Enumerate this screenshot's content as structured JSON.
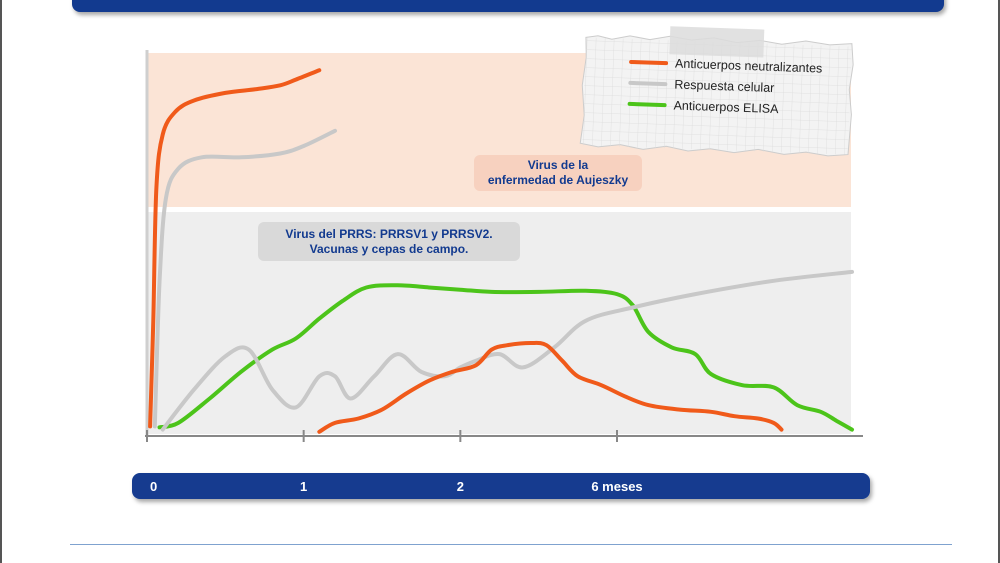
{
  "chart_data": {
    "type": "line",
    "title": "",
    "xlabel": "",
    "ylabel": "",
    "x_ticks": [
      {
        "x": 0,
        "label": "0"
      },
      {
        "x": 1,
        "label": "1"
      },
      {
        "x": 2,
        "label": "2"
      },
      {
        "x": 3,
        "label": "6 meses"
      }
    ],
    "xlim": [
      0,
      4.5
    ],
    "ylim": [
      0,
      1
    ],
    "grid": false,
    "legend": {
      "position": "top-right",
      "entries": [
        {
          "series": "neutralizing",
          "label": "Anticuerpos neutralizantes"
        },
        {
          "series": "cellular",
          "label": "Respuesta celular"
        },
        {
          "series": "elisa",
          "label": "Anticuerpos ELISA"
        }
      ]
    },
    "panels": [
      {
        "id": "aujeszky",
        "label": "Virus de la\nenfermedad de Aujeszky",
        "background": "#fbe4d6",
        "series": [
          {
            "id": "neutralizing",
            "color": "#f05a1a",
            "points": [
              [
                0.02,
                0.02
              ],
              [
                0.04,
                0.3
              ],
              [
                0.06,
                0.65
              ],
              [
                0.1,
                0.79
              ],
              [
                0.18,
                0.85
              ],
              [
                0.3,
                0.88
              ],
              [
                0.5,
                0.9
              ],
              [
                0.7,
                0.91
              ],
              [
                0.85,
                0.92
              ],
              [
                0.95,
                0.935
              ],
              [
                1.1,
                0.96
              ]
            ]
          },
          {
            "id": "cellular",
            "color": "#c8c8c8",
            "points": [
              [
                0.05,
                0.02
              ],
              [
                0.08,
                0.4
              ],
              [
                0.12,
                0.62
              ],
              [
                0.2,
                0.7
              ],
              [
                0.35,
                0.73
              ],
              [
                0.6,
                0.73
              ],
              [
                0.85,
                0.74
              ],
              [
                1.0,
                0.76
              ],
              [
                1.2,
                0.8
              ]
            ]
          }
        ]
      },
      {
        "id": "prrs",
        "label": "Virus del PRRS: PRRSV1 y PRRSV2.\nVacunas y cepas de campo.",
        "background": "#eeeeee",
        "series": [
          {
            "id": "elisa",
            "color": "#4cc41a",
            "points": [
              [
                0.08,
                0.03
              ],
              [
                0.2,
                0.05
              ],
              [
                0.4,
                0.16
              ],
              [
                0.6,
                0.28
              ],
              [
                0.8,
                0.38
              ],
              [
                0.95,
                0.43
              ],
              [
                1.1,
                0.52
              ],
              [
                1.25,
                0.6
              ],
              [
                1.4,
                0.66
              ],
              [
                1.6,
                0.67
              ],
              [
                1.8,
                0.66
              ],
              [
                2.0,
                0.65
              ],
              [
                2.2,
                0.64
              ],
              [
                2.5,
                0.64
              ],
              [
                2.8,
                0.645
              ],
              [
                3.0,
                0.63
              ],
              [
                3.1,
                0.58
              ],
              [
                3.2,
                0.46
              ],
              [
                3.35,
                0.39
              ],
              [
                3.5,
                0.36
              ],
              [
                3.6,
                0.27
              ],
              [
                3.8,
                0.22
              ],
              [
                4.0,
                0.21
              ],
              [
                4.15,
                0.13
              ],
              [
                4.3,
                0.1
              ],
              [
                4.4,
                0.06
              ],
              [
                4.5,
                0.02
              ]
            ]
          },
          {
            "id": "cellular",
            "color": "#c8c8c8",
            "points": [
              [
                0.1,
                0.02
              ],
              [
                0.3,
                0.2
              ],
              [
                0.5,
                0.35
              ],
              [
                0.65,
                0.38
              ],
              [
                0.8,
                0.2
              ],
              [
                0.95,
                0.12
              ],
              [
                1.1,
                0.26
              ],
              [
                1.2,
                0.26
              ],
              [
                1.3,
                0.16
              ],
              [
                1.45,
                0.26
              ],
              [
                1.6,
                0.36
              ],
              [
                1.75,
                0.28
              ],
              [
                1.9,
                0.26
              ],
              [
                2.0,
                0.3
              ],
              [
                2.1,
                0.33
              ],
              [
                2.25,
                0.36
              ],
              [
                2.4,
                0.3
              ],
              [
                2.6,
                0.39
              ],
              [
                2.8,
                0.51
              ],
              [
                3.1,
                0.57
              ],
              [
                3.5,
                0.63
              ],
              [
                4.0,
                0.69
              ],
              [
                4.5,
                0.73
              ]
            ]
          },
          {
            "id": "neutralizing",
            "color": "#f05a1a",
            "points": [
              [
                1.1,
                0.01
              ],
              [
                1.2,
                0.05
              ],
              [
                1.35,
                0.07
              ],
              [
                1.5,
                0.11
              ],
              [
                1.65,
                0.18
              ],
              [
                1.8,
                0.24
              ],
              [
                1.95,
                0.28
              ],
              [
                2.1,
                0.31
              ],
              [
                2.2,
                0.38
              ],
              [
                2.3,
                0.4
              ],
              [
                2.45,
                0.41
              ],
              [
                2.55,
                0.4
              ],
              [
                2.65,
                0.33
              ],
              [
                2.75,
                0.26
              ],
              [
                2.9,
                0.22
              ],
              [
                3.05,
                0.17
              ],
              [
                3.2,
                0.13
              ],
              [
                3.4,
                0.11
              ],
              [
                3.6,
                0.1
              ],
              [
                3.75,
                0.08
              ],
              [
                3.9,
                0.07
              ],
              [
                4.0,
                0.05
              ],
              [
                4.05,
                0.02
              ]
            ]
          }
        ]
      }
    ]
  }
}
